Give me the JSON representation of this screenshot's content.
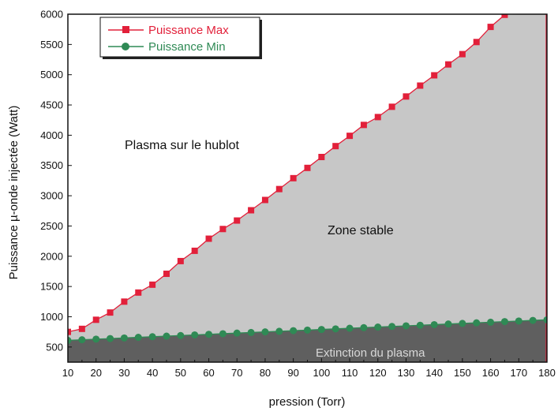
{
  "chart_data": {
    "type": "line",
    "xlabel": "pression (Torr)",
    "ylabel": "Puissance µ-onde injectée (Watt)",
    "xlim": [
      10,
      180
    ],
    "ylim": [
      250,
      6000
    ],
    "xticks": [
      10,
      20,
      30,
      40,
      50,
      60,
      70,
      80,
      90,
      100,
      110,
      120,
      130,
      140,
      150,
      160,
      170,
      180
    ],
    "yticks": [
      500,
      1000,
      1500,
      2000,
      2500,
      3000,
      3500,
      4000,
      4500,
      5000,
      5500,
      6000
    ],
    "grid": false,
    "legend_position": "top-left",
    "series": [
      {
        "name": "Puissance Max",
        "color": "#e2203a",
        "marker": "square",
        "x": [
          10,
          15,
          20,
          25,
          30,
          35,
          40,
          45,
          50,
          55,
          60,
          65,
          70,
          75,
          80,
          85,
          90,
          95,
          100,
          105,
          110,
          115,
          120,
          125,
          130,
          135,
          140,
          145,
          150,
          155,
          160,
          165
        ],
        "y": [
          750,
          800,
          950,
          1070,
          1250,
          1400,
          1530,
          1710,
          1920,
          2090,
          2290,
          2450,
          2590,
          2760,
          2930,
          3110,
          3290,
          3460,
          3640,
          3820,
          3990,
          4170,
          4300,
          4470,
          4640,
          4820,
          4990,
          5170,
          5340,
          5540,
          5790,
          5990
        ]
      },
      {
        "name": "Puissance Min",
        "color": "#2f8a55",
        "marker": "circle",
        "x": [
          10,
          15,
          20,
          25,
          30,
          35,
          40,
          45,
          50,
          55,
          60,
          65,
          70,
          75,
          80,
          85,
          90,
          95,
          100,
          105,
          110,
          115,
          120,
          125,
          130,
          135,
          140,
          145,
          150,
          155,
          160,
          165,
          170,
          175,
          180
        ],
        "y": [
          610,
          620,
          630,
          640,
          650,
          660,
          670,
          680,
          690,
          700,
          710,
          720,
          730,
          740,
          750,
          760,
          770,
          780,
          790,
          800,
          810,
          820,
          830,
          840,
          850,
          860,
          870,
          880,
          890,
          900,
          910,
          920,
          930,
          940,
          950
        ]
      }
    ],
    "annotations": {
      "plasma_hublot": "Plasma sur le hublot",
      "zone_stable": "Zone stable",
      "extinction": "Extinction du plasma"
    },
    "region_colors": {
      "stable": "#c7c7c7",
      "extinction": "#5f5f5f",
      "free": "#ffffff"
    }
  }
}
